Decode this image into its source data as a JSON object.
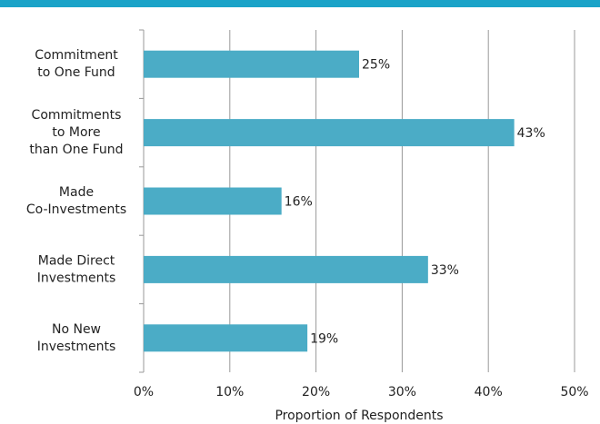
{
  "chart_data": {
    "type": "barh",
    "categories": [
      "Commitment\nto One Fund",
      "Commitments\nto More\nthan One Fund",
      "Made\nCo-Investments",
      "Made Direct\nInvestments",
      "No New\nInvestments"
    ],
    "values": [
      25,
      43,
      16,
      33,
      19
    ],
    "value_labels": [
      "25%",
      "43%",
      "16%",
      "33%",
      "19%"
    ],
    "color": "#4bacc6",
    "xlim": [
      0,
      50
    ],
    "xticks": [
      {
        "value": 0,
        "label": "0%"
      },
      {
        "value": 10,
        "label": "10%"
      },
      {
        "value": 20,
        "label": "20%"
      },
      {
        "value": 30,
        "label": "30%"
      },
      {
        "value": 40,
        "label": "40%"
      },
      {
        "value": 50,
        "label": "50%"
      }
    ],
    "xlabel": "Proportion of Respondents",
    "grid": true
  }
}
